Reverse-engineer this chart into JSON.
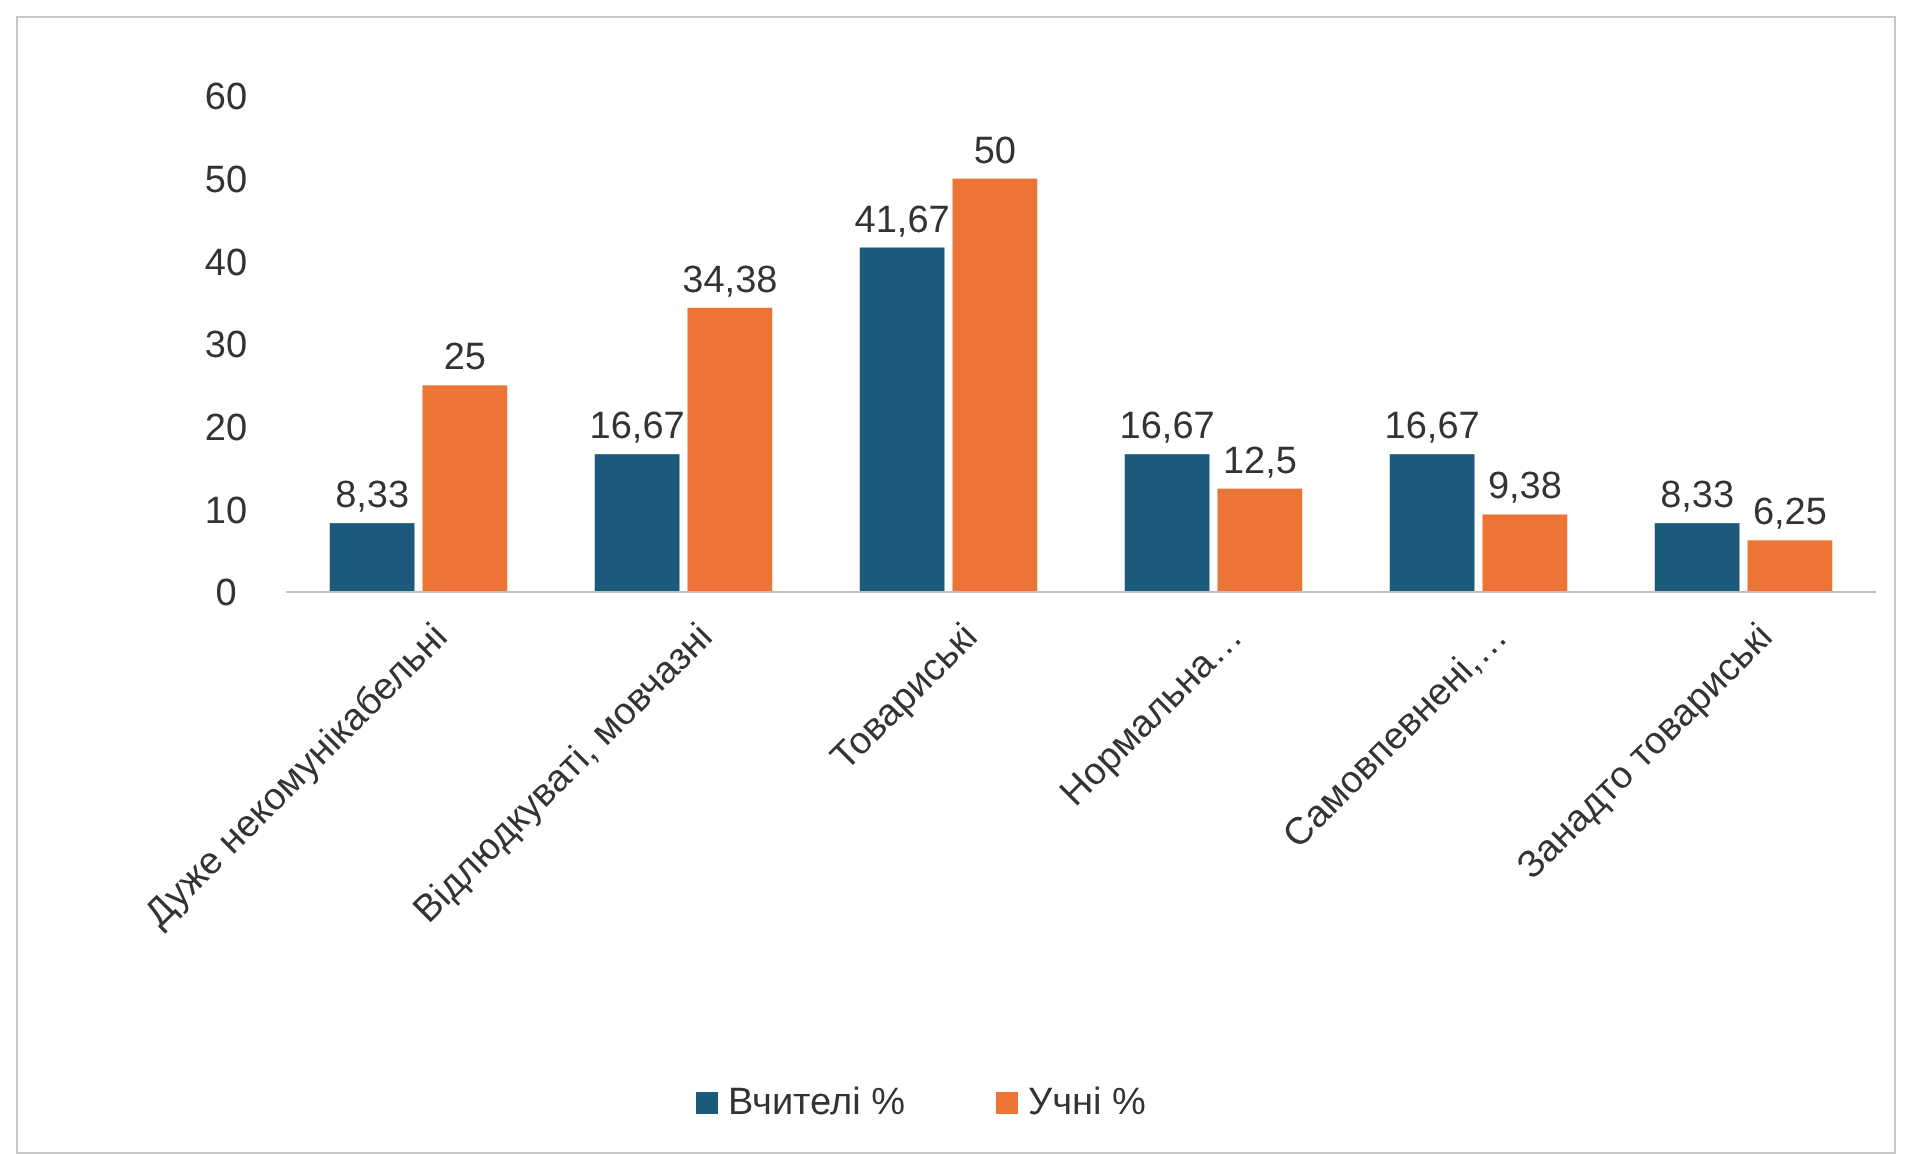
{
  "chart_data": {
    "type": "bar",
    "categories": [
      "Дуже некомунікабельні",
      "Відлюдкуваті, мовчазні",
      "Товариські",
      "Нормальна…",
      "Самовпевнені,…",
      "Занадто товариські"
    ],
    "series": [
      {
        "name": "Вчителі %",
        "color": "#1c5a7c",
        "values": [
          8.33,
          16.67,
          41.67,
          16.67,
          16.67,
          8.33
        ],
        "value_labels": [
          "8,33",
          "16,67",
          "41,67",
          "16,67",
          "16,67",
          "8,33"
        ]
      },
      {
        "name": "Учні %",
        "color": "#ec7435",
        "values": [
          25,
          34.38,
          50,
          12.5,
          9.38,
          6.25
        ],
        "value_labels": [
          "25",
          "34,38",
          "50",
          "12,5",
          "9,38",
          "6,25"
        ]
      }
    ],
    "ylim": [
      0,
      60
    ],
    "yticks": [
      0,
      10,
      20,
      30,
      40,
      50,
      60
    ],
    "grid": false,
    "legend": "bottom"
  }
}
